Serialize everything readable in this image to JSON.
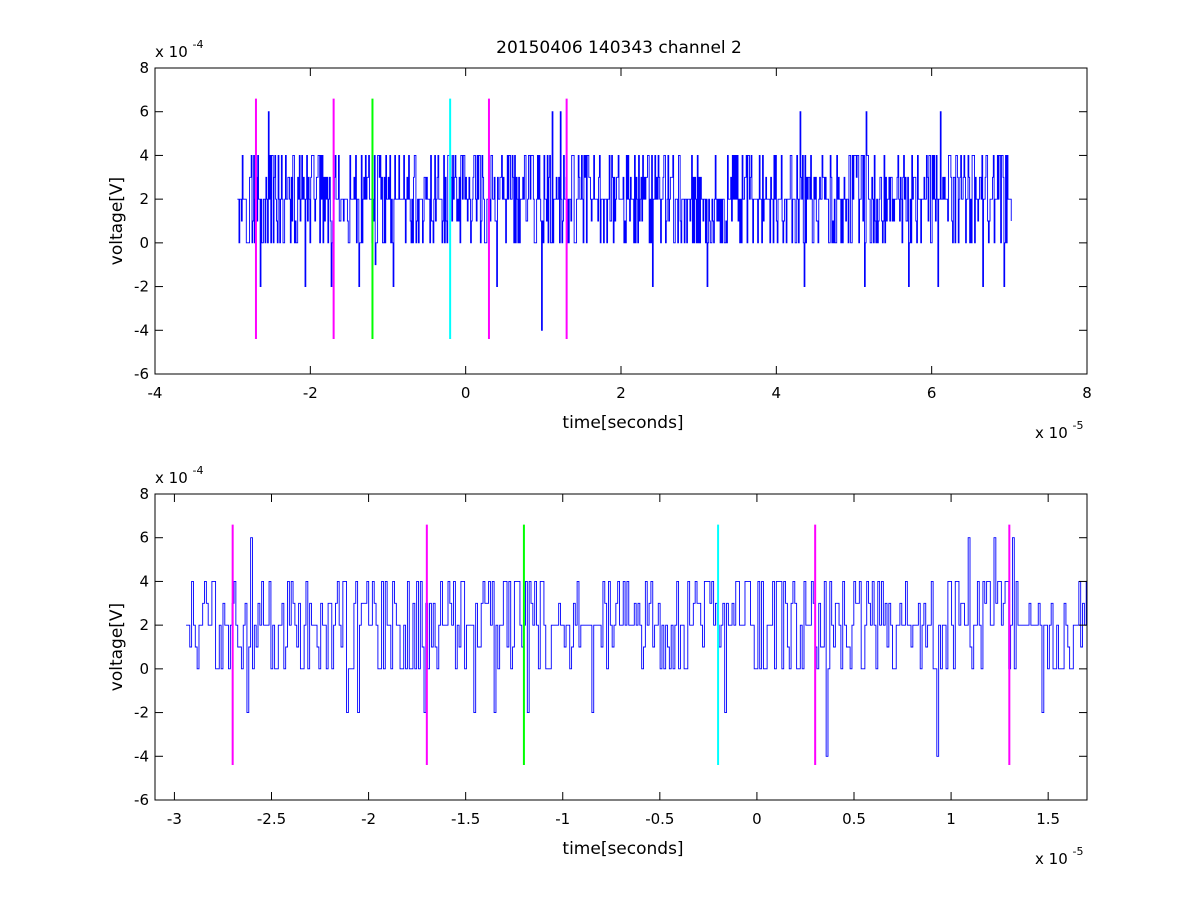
{
  "figure_title": "20150406 140343 channel 2",
  "chart_data": [
    {
      "type": "line",
      "title": "20150406 140343 channel 2",
      "xlabel": "time[seconds]",
      "ylabel": "voltage[V]",
      "x_exponent": {
        "base": "x 10",
        "power": "-5"
      },
      "y_exponent": {
        "base": "x 10",
        "power": "-4"
      },
      "xlim": [
        -4,
        8
      ],
      "ylim": [
        -6,
        8
      ],
      "xticks": [
        -4,
        -2,
        0,
        2,
        4,
        6,
        8
      ],
      "xtick_labels": [
        "-4",
        "-2",
        "0",
        "2",
        "4",
        "6",
        "8"
      ],
      "yticks": [
        -6,
        -4,
        -2,
        0,
        2,
        4,
        6,
        8
      ],
      "ytick_labels": [
        "-6",
        "-4",
        "-2",
        "0",
        "2",
        "4",
        "6",
        "8"
      ],
      "grid": false,
      "signal": {
        "name": "",
        "color": "#0000ff",
        "x_start": -2.94,
        "x_end": 7.03,
        "levels": [
          -4,
          -2,
          0,
          2,
          4,
          6
        ],
        "spikes": [
          {
            "x": -2.55,
            "y": 6
          },
          {
            "x": -2.65,
            "y": -2
          },
          {
            "x": -2.07,
            "y": -2
          },
          {
            "x": -1.74,
            "y": -2
          },
          {
            "x": -1.38,
            "y": -2
          },
          {
            "x": -1.17,
            "y": -1
          },
          {
            "x": -0.94,
            "y": -2
          },
          {
            "x": 0.39,
            "y": -2
          },
          {
            "x": 0.97,
            "y": -4
          },
          {
            "x": 1.11,
            "y": 6
          },
          {
            "x": 1.21,
            "y": 6
          },
          {
            "x": 2.4,
            "y": -2
          },
          {
            "x": 3.1,
            "y": -2
          },
          {
            "x": 4.3,
            "y": 6
          },
          {
            "x": 4.35,
            "y": -2
          },
          {
            "x": 5.15,
            "y": 6
          },
          {
            "x": 5.13,
            "y": -2
          },
          {
            "x": 5.7,
            "y": -2
          },
          {
            "x": 6.11,
            "y": 6
          },
          {
            "x": 6.07,
            "y": -2
          },
          {
            "x": 6.65,
            "y": -2
          },
          {
            "x": 6.92,
            "y": -2
          }
        ]
      },
      "markers": [
        {
          "x": -2.7,
          "color": "#ff00ff",
          "ymin": -4.4,
          "ymax": 6.6
        },
        {
          "x": -1.7,
          "color": "#ff00ff",
          "ymin": -4.4,
          "ymax": 6.6
        },
        {
          "x": -1.2,
          "color": "#00ff00",
          "ymin": -4.4,
          "ymax": 6.6
        },
        {
          "x": -0.2,
          "color": "#00ffff",
          "ymin": -4.4,
          "ymax": 6.6
        },
        {
          "x": 0.3,
          "color": "#ff00ff",
          "ymin": -4.4,
          "ymax": 6.6
        },
        {
          "x": 1.3,
          "color": "#ff00ff",
          "ymin": -4.4,
          "ymax": 6.6
        }
      ]
    },
    {
      "type": "line",
      "title": "",
      "xlabel": "time[seconds]",
      "ylabel": "voltage[V]",
      "x_exponent": {
        "base": "x 10",
        "power": "-5"
      },
      "y_exponent": {
        "base": "x 10",
        "power": "-4"
      },
      "xlim": [
        -3.1,
        1.7
      ],
      "ylim": [
        -6,
        8
      ],
      "xticks": [
        -3,
        -2.5,
        -2,
        -1.5,
        -1,
        -0.5,
        0,
        0.5,
        1,
        1.5
      ],
      "xtick_labels": [
        "-3",
        "-2.5",
        "-2",
        "-1.5",
        "-1",
        "-0.5",
        "0",
        "0.5",
        "1",
        "1.5"
      ],
      "yticks": [
        -6,
        -4,
        -2,
        0,
        2,
        4,
        6,
        8
      ],
      "ytick_labels": [
        "-6",
        "-4",
        "-2",
        "0",
        "2",
        "4",
        "6",
        "8"
      ],
      "grid": false,
      "signal": {
        "name": "",
        "color": "#0000ff",
        "x_start": -2.94,
        "x_end": 1.7,
        "levels": [
          -4,
          -2,
          0,
          2,
          4,
          6
        ],
        "spikes": [
          {
            "x": -2.61,
            "y": 6
          },
          {
            "x": -2.63,
            "y": -2
          },
          {
            "x": -2.12,
            "y": -2
          },
          {
            "x": -2.06,
            "y": -2
          },
          {
            "x": -1.72,
            "y": -2
          },
          {
            "x": -1.36,
            "y": -2
          },
          {
            "x": -1.19,
            "y": -2
          },
          {
            "x": -0.85,
            "y": -2
          },
          {
            "x": 0.35,
            "y": -4
          },
          {
            "x": 0.92,
            "y": -4
          },
          {
            "x": 1.08,
            "y": 6
          },
          {
            "x": 1.22,
            "y": 6
          },
          {
            "x": 1.31,
            "y": 6
          },
          {
            "x": 1.46,
            "y": -2
          },
          {
            "x": -1.46,
            "y": -2
          },
          {
            "x": -0.17,
            "y": -2
          }
        ]
      },
      "markers": [
        {
          "x": -2.7,
          "color": "#ff00ff",
          "ymin": -4.4,
          "ymax": 6.6
        },
        {
          "x": -1.7,
          "color": "#ff00ff",
          "ymin": -4.4,
          "ymax": 6.6
        },
        {
          "x": -1.2,
          "color": "#00ff00",
          "ymin": -4.4,
          "ymax": 6.6
        },
        {
          "x": -0.2,
          "color": "#00ffff",
          "ymin": -4.4,
          "ymax": 6.6
        },
        {
          "x": 0.3,
          "color": "#ff00ff",
          "ymin": -4.4,
          "ymax": 6.6
        },
        {
          "x": 1.3,
          "color": "#ff00ff",
          "ymin": -4.4,
          "ymax": 6.6
        }
      ]
    }
  ]
}
